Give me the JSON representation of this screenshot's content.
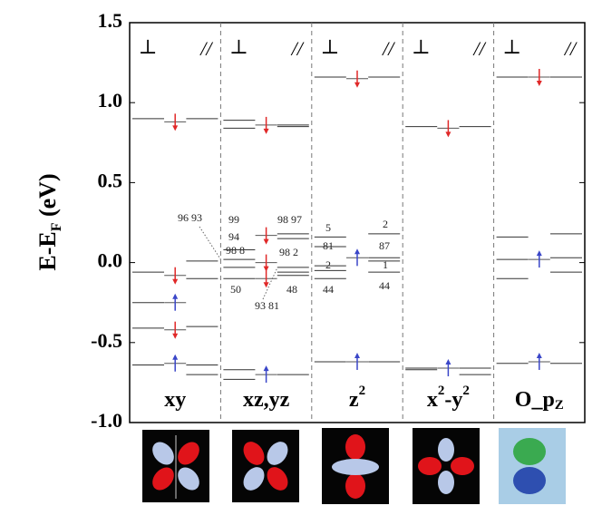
{
  "chart_data": {
    "type": "level-diagram",
    "ylabel": [
      "E-E",
      "F",
      " (eV)"
    ],
    "ylim": [
      -1.0,
      1.5
    ],
    "yticks": [
      {
        "value": -1.0,
        "label": "-1.0"
      },
      {
        "value": -0.5,
        "label": "-0.5"
      },
      {
        "value": 0.0,
        "label": "0.0"
      },
      {
        "value": 0.5,
        "label": "0.5"
      },
      {
        "value": 1.0,
        "label": "1.0"
      },
      {
        "value": 1.5,
        "label": "1.5"
      }
    ],
    "left_header": "⊥",
    "right_header": "//",
    "panels": [
      {
        "label": [
          "xy"
        ],
        "left": [
          0.9,
          -0.06,
          -0.25,
          -0.41,
          -0.64
        ],
        "right": [
          0.9,
          0.01,
          -0.1,
          -0.4,
          -0.64,
          -0.7
        ],
        "arrows": [
          {
            "value": 0.88,
            "spin": "down",
            "color": "#e02828"
          },
          {
            "value": -0.08,
            "spin": "down",
            "color": "#e02828"
          },
          {
            "value": -0.25,
            "spin": "up",
            "color": "#3a46c8"
          },
          {
            "value": -0.42,
            "spin": "down",
            "color": "#e02828"
          },
          {
            "value": -0.63,
            "spin": "up",
            "color": "#3a46c8"
          }
        ],
        "notes": [
          "96 93"
        ]
      },
      {
        "label": [
          "xz,yz"
        ],
        "left": [
          0.89,
          0.84,
          0.08,
          0.02,
          -0.03,
          -0.1,
          -0.67,
          -0.73
        ],
        "right": [
          0.86,
          0.85,
          0.18,
          0.15,
          -0.03,
          -0.06,
          -0.08,
          -0.7
        ],
        "arrows": [
          {
            "value": 0.86,
            "spin": "down",
            "color": "#e02828"
          },
          {
            "value": 0.17,
            "spin": "down",
            "color": "#e02828"
          },
          {
            "value": 0.0,
            "spin": "down",
            "color": "#e02828"
          },
          {
            "value": -0.1,
            "spin": "down",
            "color": "#e02828"
          },
          {
            "value": -0.7,
            "spin": "up",
            "color": "#3a46c8"
          }
        ],
        "notes": [
          "99",
          "94",
          "98 8",
          "50",
          "98 97",
          "98 2",
          "48",
          "93 81"
        ]
      },
      {
        "label": [
          "z",
          "2"
        ],
        "left": [
          1.16,
          0.16,
          0.1,
          -0.02,
          -0.05,
          -0.1,
          -0.62
        ],
        "right": [
          1.16,
          0.18,
          0.03,
          0.01,
          -0.06,
          -0.62
        ],
        "arrows": [
          {
            "value": 1.15,
            "spin": "down",
            "color": "#e02828"
          },
          {
            "value": 0.03,
            "spin": "up",
            "color": "#3a46c8"
          },
          {
            "value": -0.62,
            "spin": "up",
            "color": "#3a46c8"
          }
        ],
        "notes": [
          "5",
          "81",
          "2",
          "44",
          "2",
          "87",
          "1",
          "44"
        ]
      },
      {
        "label": [
          "x",
          "2",
          "-y",
          "2"
        ],
        "left": [
          0.85,
          -0.66,
          -0.67
        ],
        "right": [
          0.85,
          -0.66,
          -0.7
        ],
        "arrows": [
          {
            "value": 0.84,
            "spin": "down",
            "color": "#e02828"
          },
          {
            "value": -0.66,
            "spin": "up",
            "color": "#3a46c8"
          }
        ],
        "notes": []
      },
      {
        "label": [
          "O_p",
          "Z"
        ],
        "left": [
          1.16,
          0.16,
          0.02,
          -0.1,
          -0.63
        ],
        "right": [
          1.16,
          0.18,
          0.03,
          -0.06,
          -0.63
        ],
        "arrows": [
          {
            "value": 1.16,
            "spin": "down",
            "color": "#e02828"
          },
          {
            "value": 0.02,
            "spin": "up",
            "color": "#3a46c8"
          },
          {
            "value": -0.62,
            "spin": "up",
            "color": "#3a46c8"
          }
        ],
        "notes": []
      }
    ]
  }
}
